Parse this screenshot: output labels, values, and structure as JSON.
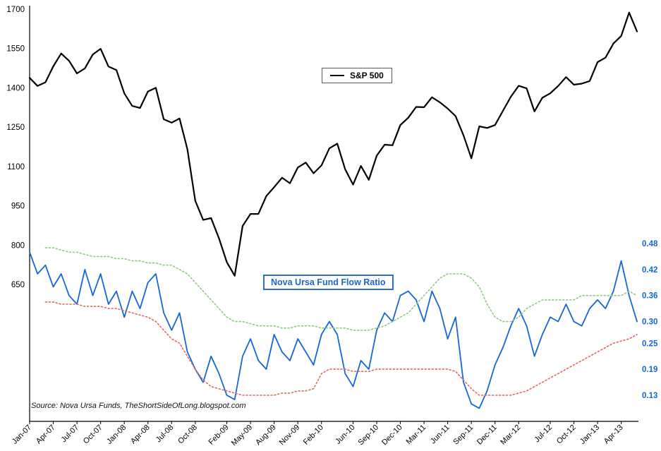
{
  "page": {
    "background": "#ffffff"
  },
  "legend": {
    "sp500_label": "S&P 500"
  },
  "ratio_label": "Nova Ursa Fund Flow Ratio",
  "source_note": "Source: Nova Ursa Funds, TheShortSideOfLong.blogspot.com",
  "chart_data": {
    "type": "line",
    "title": "",
    "n_points": 78,
    "x_labels": [
      "Jan-07",
      "Apr-07",
      "Jul-07",
      "Oct-07",
      "Jan-08",
      "Apr-08",
      "Jul-08",
      "Oct-08",
      "Feb-09",
      "May-09",
      "Aug-09",
      "Nov-09",
      "Feb-10",
      "Jun-10",
      "Sep-10",
      "Dec-10",
      "Mar-11",
      "Jun-11",
      "Sep-11",
      "Dec-11",
      "Mar-12",
      "Jul-12",
      "Oct-12",
      "Jan-13",
      "Apr-13"
    ],
    "x_label_positions": [
      0,
      3,
      6,
      9,
      12,
      15,
      18,
      21,
      25,
      28,
      31,
      34,
      37,
      41,
      44,
      47,
      50,
      53,
      56,
      59,
      62,
      66,
      69,
      72,
      75
    ],
    "left_axis": {
      "min": 650,
      "max": 1700,
      "ticks": [
        1700,
        1550,
        1400,
        1250,
        1100,
        950,
        800,
        650
      ],
      "color": "#000000"
    },
    "right_axis": {
      "min": 0.13,
      "max": 0.48,
      "tick_labels": [
        "0.48",
        "0.42",
        "0.36",
        "0.30",
        "0.25",
        "0.19",
        "0.13"
      ],
      "tick_values": [
        0.48,
        0.42,
        0.36,
        0.3,
        0.25,
        0.19,
        0.13
      ],
      "color": "#1566d8"
    },
    "grid": false,
    "legend_position": "top-center",
    "series": [
      {
        "name": "S&P 500",
        "axis": "left",
        "color": "#000000",
        "style": "solid",
        "width": 2.2,
        "values": [
          1438,
          1407,
          1421,
          1482,
          1531,
          1503,
          1455,
          1474,
          1527,
          1549,
          1481,
          1468,
          1379,
          1331,
          1323,
          1386,
          1400,
          1280,
          1267,
          1283,
          1166,
          969,
          896,
          903,
          826,
          735,
          683,
          873,
          919,
          919,
          987,
          1021,
          1057,
          1036,
          1096,
          1115,
          1074,
          1104,
          1169,
          1187,
          1089,
          1031,
          1102,
          1049,
          1141,
          1183,
          1181,
          1258,
          1286,
          1327,
          1326,
          1364,
          1345,
          1321,
          1292,
          1219,
          1131,
          1253,
          1247,
          1258,
          1312,
          1366,
          1408,
          1398,
          1310,
          1362,
          1379,
          1407,
          1441,
          1412,
          1416,
          1426,
          1498,
          1515,
          1569,
          1598,
          1687,
          1615
        ]
      },
      {
        "name": "Nova Ursa Fund Flow Ratio",
        "axis": "right",
        "color": "#1566d8",
        "style": "solid",
        "width": 1.8,
        "values": [
          0.46,
          0.41,
          0.43,
          0.38,
          0.41,
          0.36,
          0.34,
          0.42,
          0.36,
          0.41,
          0.34,
          0.37,
          0.31,
          0.37,
          0.33,
          0.39,
          0.41,
          0.32,
          0.28,
          0.32,
          0.23,
          0.19,
          0.16,
          0.22,
          0.18,
          0.13,
          0.12,
          0.22,
          0.26,
          0.21,
          0.19,
          0.27,
          0.23,
          0.21,
          0.26,
          0.23,
          0.2,
          0.27,
          0.3,
          0.27,
          0.18,
          0.15,
          0.21,
          0.19,
          0.28,
          0.32,
          0.3,
          0.36,
          0.37,
          0.35,
          0.3,
          0.37,
          0.33,
          0.26,
          0.31,
          0.16,
          0.11,
          0.1,
          0.14,
          0.2,
          0.24,
          0.29,
          0.33,
          0.29,
          0.22,
          0.27,
          0.31,
          0.3,
          0.34,
          0.3,
          0.29,
          0.33,
          0.35,
          0.33,
          0.37,
          0.44,
          0.36,
          0.3
        ]
      },
      {
        "name": "ratio-upper-band",
        "axis": "right",
        "color": "#8fc97e",
        "style": "dotted",
        "width": 1.6,
        "values": [
          null,
          null,
          0.47,
          0.47,
          0.465,
          0.46,
          0.46,
          0.455,
          0.45,
          0.45,
          0.45,
          0.445,
          0.445,
          0.44,
          0.44,
          0.435,
          0.435,
          0.43,
          0.43,
          0.42,
          0.41,
          0.39,
          0.37,
          0.35,
          0.33,
          0.31,
          0.3,
          0.3,
          0.295,
          0.29,
          0.29,
          0.29,
          0.285,
          0.285,
          0.29,
          0.29,
          0.29,
          0.285,
          0.285,
          0.285,
          0.285,
          0.28,
          0.28,
          0.28,
          0.285,
          0.29,
          0.3,
          0.31,
          0.32,
          0.34,
          0.36,
          0.38,
          0.4,
          0.41,
          0.41,
          0.41,
          0.4,
          0.38,
          0.34,
          0.31,
          0.3,
          0.3,
          0.31,
          0.33,
          0.34,
          0.35,
          0.35,
          0.35,
          0.35,
          0.35,
          0.36,
          0.36,
          0.36,
          0.36,
          0.36,
          0.36,
          0.37,
          0.36
        ]
      },
      {
        "name": "ratio-lower-band",
        "axis": "right",
        "color": "#e06a5e",
        "style": "dotted",
        "width": 1.6,
        "values": [
          null,
          null,
          0.345,
          0.345,
          0.34,
          0.34,
          0.34,
          0.335,
          0.335,
          0.335,
          0.33,
          0.33,
          0.325,
          0.32,
          0.315,
          0.31,
          0.3,
          0.28,
          0.26,
          0.25,
          0.22,
          0.19,
          0.165,
          0.15,
          0.145,
          0.14,
          0.135,
          0.13,
          0.13,
          0.13,
          0.13,
          0.13,
          0.135,
          0.135,
          0.14,
          0.14,
          0.145,
          0.18,
          0.19,
          0.19,
          0.19,
          0.185,
          0.185,
          0.185,
          0.19,
          0.19,
          0.19,
          0.19,
          0.19,
          0.19,
          0.19,
          0.19,
          0.19,
          0.19,
          0.185,
          0.165,
          0.145,
          0.13,
          0.13,
          0.13,
          0.13,
          0.13,
          0.135,
          0.14,
          0.15,
          0.16,
          0.17,
          0.18,
          0.19,
          0.2,
          0.21,
          0.22,
          0.23,
          0.24,
          0.25,
          0.255,
          0.26,
          0.27
        ]
      }
    ]
  }
}
